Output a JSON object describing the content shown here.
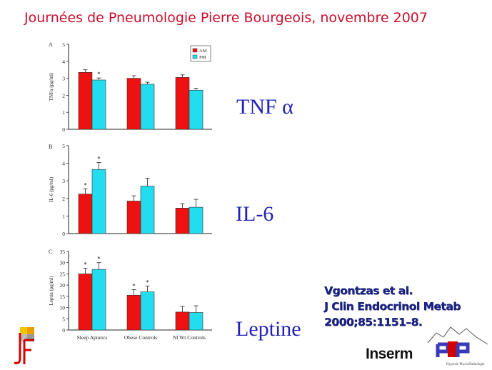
{
  "header": {
    "title": "Journées de Pneumologie Pierre Bourgeois, novembre 2007"
  },
  "labels": {
    "tnf": "TNF α",
    "il6": "IL-6",
    "leptine": "Leptine"
  },
  "reference": {
    "line1": "Vgontzas et al.",
    "line2": "J Clin Endocrinol Metab",
    "line3": "2000;85:1151–8."
  },
  "logos": {
    "inserm": "Inserm",
    "hp": "HP",
    "hp_caption": "Hypoxie PhysioPathologie",
    "jf": "JF"
  },
  "colors": {
    "am": "#ee1111",
    "pm": "#22ddee",
    "title": "#c8102e",
    "label": "#2323b8",
    "ref": "#1a237e"
  },
  "chart_data": [
    {
      "type": "bar",
      "panel": "A",
      "categories": [
        "Sleep Apneics",
        "Obese Controls",
        "Nl Wt Controls"
      ],
      "series": [
        {
          "name": "AM",
          "values": [
            3.35,
            3.0,
            3.05
          ]
        },
        {
          "name": "PM",
          "values": [
            2.9,
            2.65,
            2.3
          ]
        }
      ],
      "errors": [
        [
          0.15,
          0.15,
          0.15
        ],
        [
          0.12,
          0.12,
          0.12
        ]
      ],
      "stars": [
        [
          false,
          false,
          false
        ],
        [
          true,
          false,
          false
        ]
      ],
      "ylabel": "TNFα (pg/ml)",
      "ylim": [
        0,
        5
      ],
      "yticks": [
        0,
        1,
        2,
        3,
        4,
        5
      ],
      "legend": [
        "AM",
        "PM"
      ],
      "legend_position": "top-right"
    },
    {
      "type": "bar",
      "panel": "B",
      "categories": [
        "Sleep Apneics",
        "Obese Controls",
        "Nl Wt Controls"
      ],
      "series": [
        {
          "name": "AM",
          "values": [
            2.25,
            1.85,
            1.45
          ]
        },
        {
          "name": "PM",
          "values": [
            3.65,
            2.7,
            1.5
          ]
        }
      ],
      "errors": [
        [
          0.3,
          0.3,
          0.25
        ],
        [
          0.4,
          0.45,
          0.45
        ]
      ],
      "stars": [
        [
          true,
          false,
          false
        ],
        [
          true,
          false,
          false
        ]
      ],
      "ylabel": "IL-6 (pg/ml)",
      "ylim": [
        0,
        5
      ],
      "yticks": [
        0,
        1,
        2,
        3,
        4,
        5
      ]
    },
    {
      "type": "bar",
      "panel": "C",
      "categories": [
        "Sleep Apneics",
        "Obese Controls",
        "Nl Wt Controls"
      ],
      "series": [
        {
          "name": "AM",
          "values": [
            25,
            15.5,
            8
          ]
        },
        {
          "name": "PM",
          "values": [
            27,
            17,
            7.8
          ]
        }
      ],
      "errors": [
        [
          2.5,
          2.5,
          2.5
        ],
        [
          3,
          2.5,
          3
        ]
      ],
      "stars": [
        [
          true,
          true,
          false
        ],
        [
          true,
          true,
          false
        ]
      ],
      "ylabel": "Leptin (pg/ml)",
      "ylim": [
        0,
        35
      ],
      "yticks": [
        0,
        5,
        10,
        15,
        20,
        25,
        30,
        35
      ],
      "xtick_labels": [
        "Sleep Apneics",
        "Obese Controls",
        "Nl Wt Controls"
      ]
    }
  ]
}
